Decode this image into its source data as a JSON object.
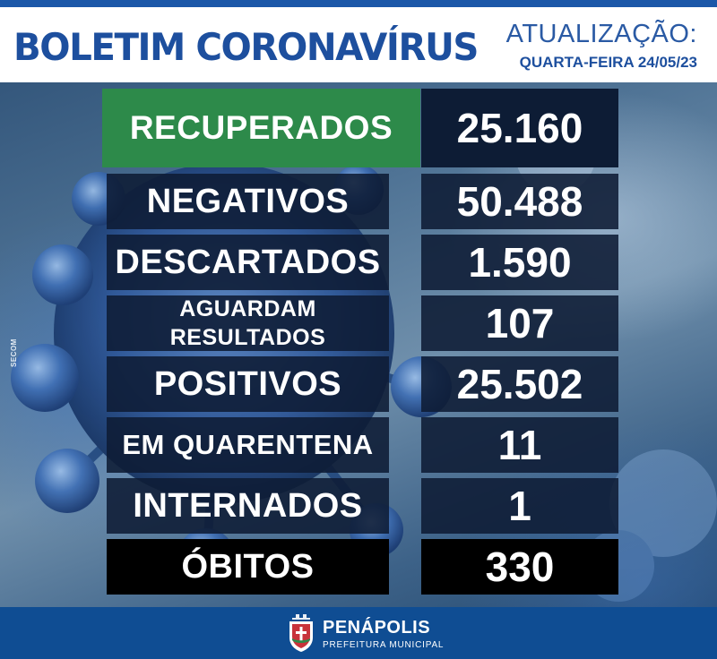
{
  "header": {
    "title": "BOLETIM CORONAVÍRUS",
    "update_label": "ATUALIZAÇÃO:",
    "update_date": "QUARTA-FEIRA 24/05/23"
  },
  "credit": "SECOM",
  "stats": [
    {
      "label": "RECUPERADOS",
      "value": "25.160"
    },
    {
      "label": "NEGATIVOS",
      "value": "50.488"
    },
    {
      "label": "DESCARTADOS",
      "value": "1.590"
    },
    {
      "label_line1": "AGUARDAM",
      "label_line2": "RESULTADOS",
      "value": "107"
    },
    {
      "label": "POSITIVOS",
      "value": "25.502"
    },
    {
      "label": "EM QUARENTENA",
      "value": "11"
    },
    {
      "label": "INTERNADOS",
      "value": "1"
    },
    {
      "label": "ÓBITOS",
      "value": "330"
    }
  ],
  "footer": {
    "city": "PENÁPOLIS",
    "subtitle": "PREFEITURA MUNICIPAL",
    "crest_icon": "city-crest-icon"
  },
  "colors": {
    "brand_blue": "#1d4f9e",
    "recovered_green": "#2d8a4a",
    "deaths_black": "#000000",
    "footer_blue": "#0f4d93"
  }
}
